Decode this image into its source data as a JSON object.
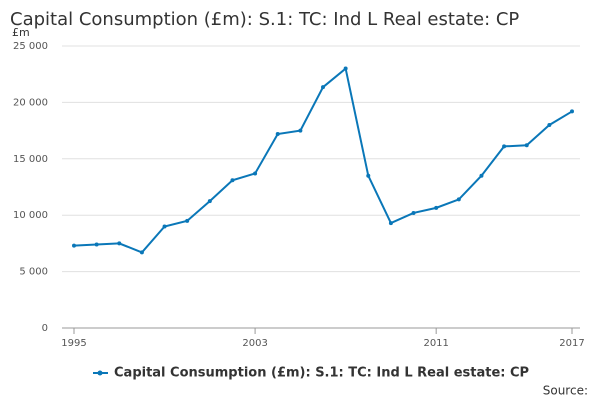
{
  "chart_data": {
    "type": "line",
    "title": "Capital Consumption (£m): S.1: TC: Ind L Real estate: CP",
    "y_label": "£m",
    "source": "Source:",
    "x": [
      1995,
      1996,
      1997,
      1998,
      1999,
      2000,
      2001,
      2002,
      2003,
      2004,
      2005,
      2006,
      2007,
      2008,
      2009,
      2010,
      2011,
      2012,
      2013,
      2014,
      2015,
      2016,
      2017
    ],
    "series": [
      {
        "name": "Capital Consumption (£m): S.1: TC: Ind L Real estate: CP",
        "color": "#0a77b8",
        "values": [
          7300,
          7400,
          7500,
          6700,
          9000,
          9500,
          11250,
          13100,
          13700,
          17200,
          17500,
          21350,
          23000,
          13500,
          9300,
          10200,
          10650,
          11400,
          13500,
          16100,
          16200,
          18000,
          19200
        ]
      }
    ],
    "xlim": [
      1995,
      2017
    ],
    "xticks": [
      1995,
      2003,
      2011,
      2017
    ],
    "ylim": [
      0,
      25000
    ],
    "yticks": [
      0,
      {
        "value": 5000,
        "label": "5 000"
      },
      {
        "value": 10000,
        "label": "10 000"
      },
      {
        "value": 15000,
        "label": "15 000"
      },
      {
        "value": 20000,
        "label": "20 000"
      },
      {
        "value": 25000,
        "label": "25 000"
      }
    ],
    "grid": true,
    "legend": "bottom"
  }
}
